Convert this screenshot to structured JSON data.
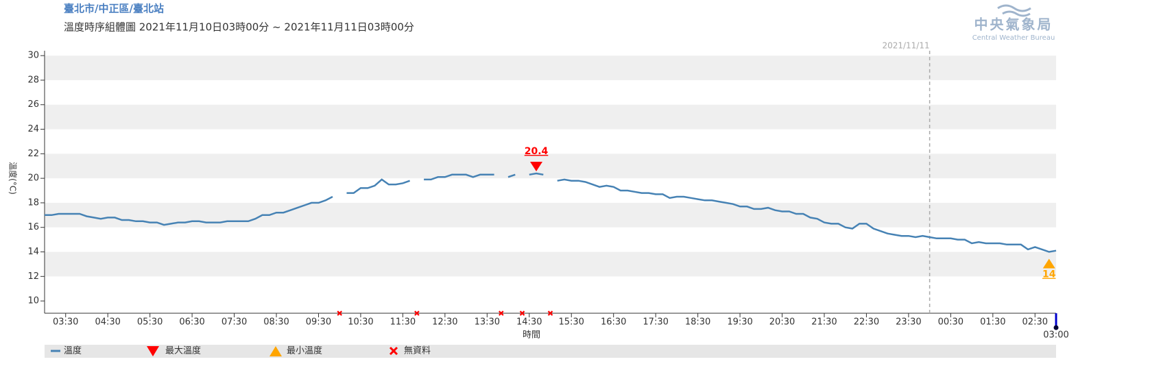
{
  "chart_data": {
    "type": "line",
    "title": "臺北市/中正區/臺北站",
    "subtitle": "溫度時序組體圖 2021年11月10日03時00分 ~ 2021年11月11日03時00分",
    "ylabel": "溫度(°C)",
    "xlabel": "時間",
    "logo": {
      "name": "中央氣象局",
      "sub": "Central Weather Bureau"
    },
    "x": [
      "03:00",
      "03:10",
      "03:20",
      "03:30",
      "03:40",
      "03:50",
      "04:00",
      "04:10",
      "04:20",
      "04:30",
      "04:40",
      "04:50",
      "05:00",
      "05:10",
      "05:20",
      "05:30",
      "05:40",
      "05:50",
      "06:00",
      "06:10",
      "06:20",
      "06:30",
      "06:40",
      "06:50",
      "07:00",
      "07:10",
      "07:20",
      "07:30",
      "07:40",
      "07:50",
      "08:00",
      "08:10",
      "08:20",
      "08:30",
      "08:40",
      "08:50",
      "09:00",
      "09:10",
      "09:20",
      "09:30",
      "09:40",
      "09:50",
      "10:00",
      "10:10",
      "10:20",
      "10:30",
      "10:40",
      "10:50",
      "11:00",
      "11:10",
      "11:20",
      "11:30",
      "11:40",
      "11:50",
      "12:00",
      "12:10",
      "12:20",
      "12:30",
      "12:40",
      "12:50",
      "13:00",
      "13:10",
      "13:20",
      "13:30",
      "13:40",
      "13:50",
      "14:00",
      "14:10",
      "14:20",
      "14:30",
      "14:40",
      "14:50",
      "15:00",
      "15:10",
      "15:20",
      "15:30",
      "15:40",
      "15:50",
      "16:00",
      "16:10",
      "16:20",
      "16:30",
      "16:40",
      "16:50",
      "17:00",
      "17:10",
      "17:20",
      "17:30",
      "17:40",
      "17:50",
      "18:00",
      "18:10",
      "18:20",
      "18:30",
      "18:40",
      "18:50",
      "19:00",
      "19:10",
      "19:20",
      "19:30",
      "19:40",
      "19:50",
      "20:00",
      "20:10",
      "20:20",
      "20:30",
      "20:40",
      "20:50",
      "21:00",
      "21:10",
      "21:20",
      "21:30",
      "21:40",
      "21:50",
      "22:00",
      "22:10",
      "22:20",
      "22:30",
      "22:40",
      "22:50",
      "23:00",
      "23:10",
      "23:20",
      "23:30",
      "23:40",
      "23:50",
      "00:00",
      "00:10",
      "00:20",
      "00:30",
      "00:40",
      "00:50",
      "01:00",
      "01:10",
      "01:20",
      "01:30",
      "01:40",
      "01:50",
      "02:00",
      "02:10",
      "02:20",
      "02:30",
      "02:40",
      "02:50",
      "03:00"
    ],
    "series": [
      {
        "name": "溫度",
        "color": "#4682b4",
        "values": [
          17.0,
          17.0,
          17.1,
          17.1,
          17.1,
          17.1,
          16.9,
          16.8,
          16.7,
          16.8,
          16.8,
          16.6,
          16.6,
          16.5,
          16.5,
          16.4,
          16.4,
          16.2,
          16.3,
          16.4,
          16.4,
          16.5,
          16.5,
          16.4,
          16.4,
          16.4,
          16.5,
          16.5,
          16.5,
          16.5,
          16.7,
          17.0,
          17.0,
          17.2,
          17.2,
          17.4,
          17.6,
          17.8,
          18.0,
          18.0,
          18.2,
          18.5,
          null,
          18.8,
          18.8,
          19.2,
          19.2,
          19.4,
          19.9,
          19.5,
          19.5,
          19.6,
          19.8,
          null,
          19.9,
          19.9,
          20.1,
          20.1,
          20.3,
          20.3,
          20.3,
          20.1,
          20.3,
          20.3,
          20.3,
          null,
          20.1,
          20.3,
          null,
          20.3,
          20.4,
          20.3,
          null,
          19.8,
          19.9,
          19.8,
          19.8,
          19.7,
          19.5,
          19.3,
          19.4,
          19.3,
          19.0,
          19.0,
          18.9,
          18.8,
          18.8,
          18.7,
          18.7,
          18.4,
          18.5,
          18.5,
          18.4,
          18.3,
          18.2,
          18.2,
          18.1,
          18.0,
          17.9,
          17.7,
          17.7,
          17.5,
          17.5,
          17.6,
          17.4,
          17.3,
          17.3,
          17.1,
          17.1,
          16.8,
          16.7,
          16.4,
          16.3,
          16.3,
          16.0,
          15.9,
          16.3,
          16.3,
          15.9,
          15.7,
          15.5,
          15.4,
          15.3,
          15.3,
          15.2,
          15.3,
          15.2,
          15.1,
          15.1,
          15.1,
          15.0,
          15.0,
          14.7,
          14.8,
          14.7,
          14.7,
          14.7,
          14.6,
          14.6,
          14.6,
          14.2,
          14.4,
          14.2,
          14.0,
          14.1
        ]
      }
    ],
    "max_marker": {
      "name": "最大溫度",
      "color": "#ff0000",
      "x": "14:40",
      "value": 20.4
    },
    "min_marker": {
      "name": "最小溫度",
      "color": "#ffa500",
      "x": "02:50",
      "value": 14
    },
    "missing": {
      "name": "無資料",
      "color": "#ff0000",
      "x": [
        "10:00",
        "11:50",
        "13:50",
        "14:20",
        "15:00"
      ]
    },
    "date_line": {
      "label": "2021/11/11",
      "x": "00:00"
    },
    "ylim": [
      9,
      30.4
    ],
    "yticks": [
      10,
      12,
      14,
      16,
      18,
      20,
      22,
      24,
      26,
      28,
      30
    ],
    "grid": "bands",
    "xticks": [
      "03:30",
      "04:30",
      "05:30",
      "06:30",
      "07:30",
      "08:30",
      "09:30",
      "10:30",
      "11:30",
      "12:30",
      "13:30",
      "14:30",
      "15:30",
      "16:30",
      "17:30",
      "18:30",
      "19:30",
      "20:30",
      "21:30",
      "22:30",
      "23:30",
      "00:30",
      "01:30",
      "02:30",
      "03:00"
    ]
  }
}
